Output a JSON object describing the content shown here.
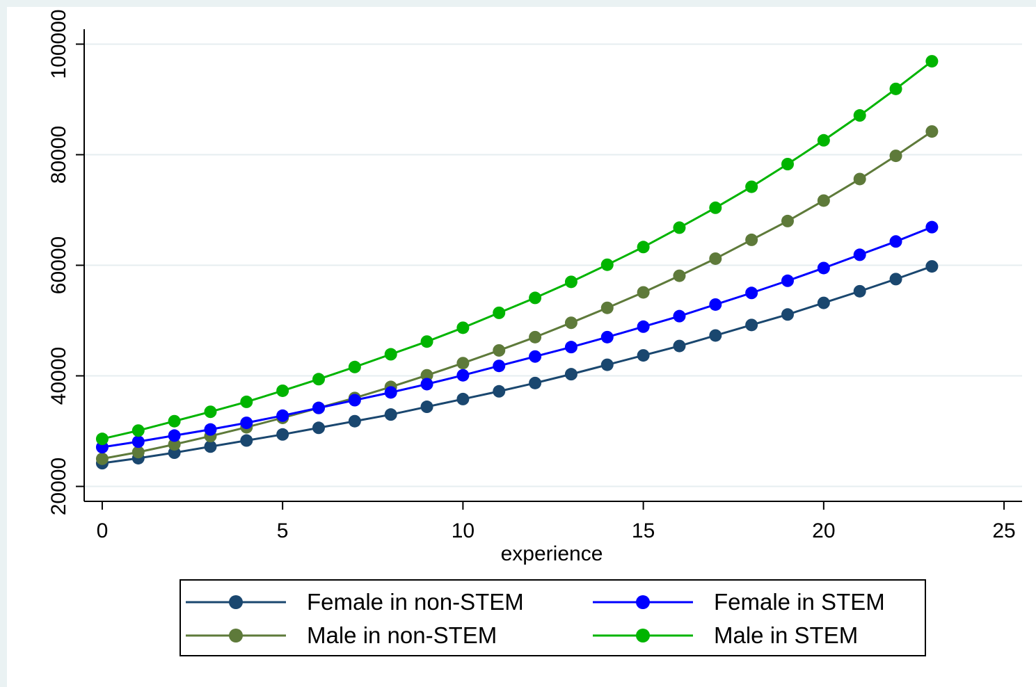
{
  "chart_data": {
    "type": "line",
    "xlabel": "experience",
    "ylabel": "",
    "xlim": [
      -0.5,
      25.5
    ],
    "ylim": [
      17300,
      102700
    ],
    "xticks": [
      0,
      5,
      10,
      15,
      20,
      25
    ],
    "yticks": [
      20000,
      40000,
      60000,
      80000,
      100000
    ],
    "grid": "horizontal",
    "legend_position": "bottom",
    "x": [
      0,
      1,
      2,
      3,
      4,
      5,
      6,
      7,
      8,
      9,
      10,
      11,
      12,
      13,
      14,
      15,
      16,
      17,
      18,
      19,
      20,
      21,
      22,
      23
    ],
    "series": [
      {
        "name": "Female in non-STEM",
        "color": "#1a476f",
        "values": [
          24200,
          25100,
          26100,
          27200,
          28300,
          29400,
          30600,
          31800,
          33000,
          34400,
          35800,
          37200,
          38700,
          40300,
          42000,
          43700,
          45400,
          47300,
          49200,
          51100,
          53200,
          55300,
          57500,
          59800
        ]
      },
      {
        "name": "Female in STEM",
        "color": "#0000ff",
        "values": [
          27100,
          28100,
          29200,
          30300,
          31500,
          32800,
          34200,
          35600,
          37000,
          38500,
          40100,
          41800,
          43500,
          45200,
          47000,
          48900,
          50800,
          52900,
          55000,
          57200,
          59500,
          61900,
          64300,
          66900
        ]
      },
      {
        "name": "Male in non-STEM",
        "color": "#5e7a3a",
        "values": [
          25000,
          26200,
          27600,
          29100,
          30700,
          32400,
          34200,
          36000,
          38000,
          40100,
          42300,
          44600,
          47000,
          49600,
          52300,
          55100,
          58100,
          61200,
          64600,
          68000,
          71700,
          75600,
          79800,
          84200
        ]
      },
      {
        "name": "Male in STEM",
        "color": "#00b400",
        "values": [
          28600,
          30100,
          31800,
          33500,
          35300,
          37300,
          39400,
          41600,
          43900,
          46200,
          48700,
          51400,
          54100,
          57000,
          60100,
          63300,
          66800,
          70400,
          74200,
          78300,
          82600,
          87100,
          91900,
          96900
        ]
      }
    ],
    "legend_order": [
      0,
      1,
      2,
      3
    ]
  }
}
